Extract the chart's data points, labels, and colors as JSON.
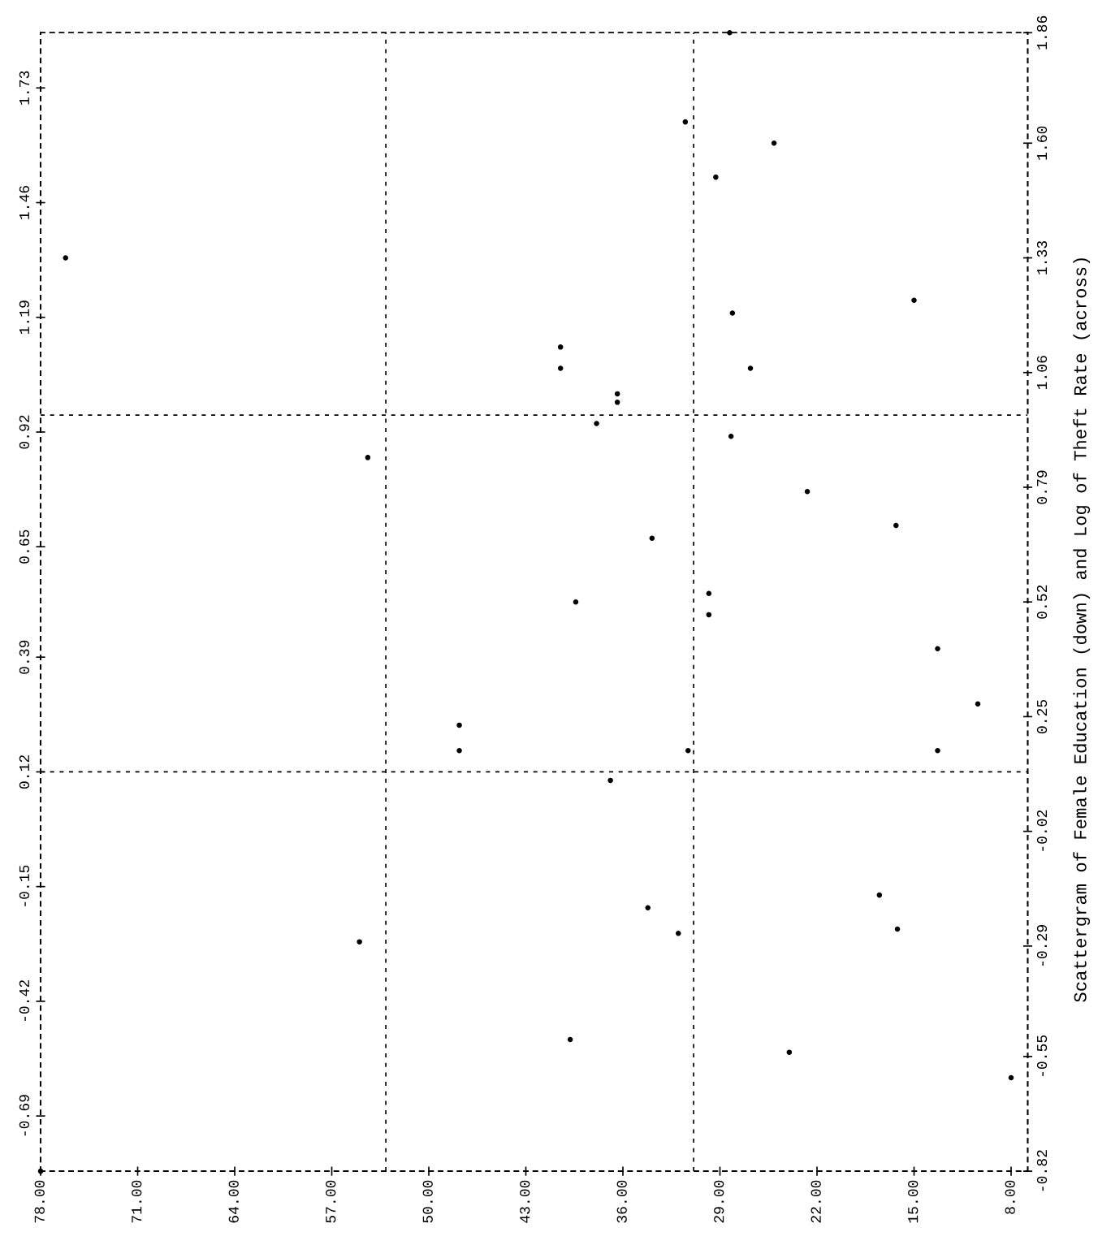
{
  "chart_data": {
    "type": "scatter",
    "title": "Scattergram of Female Education (down) and Log of Theft Rate (across)",
    "marker": "circle",
    "grid": false,
    "xlim": [
      78,
      6.8
    ],
    "xticks": [
      {
        "value": 78,
        "label": "78.00"
      },
      {
        "value": 71,
        "label": "71.00"
      },
      {
        "value": 64,
        "label": "64.00"
      },
      {
        "value": 57,
        "label": "57.00"
      },
      {
        "value": 50,
        "label": "50.00"
      },
      {
        "value": 43,
        "label": "43.00"
      },
      {
        "value": 36,
        "label": "36.00"
      },
      {
        "value": 29,
        "label": "29.00"
      },
      {
        "value": 22,
        "label": "22.00"
      },
      {
        "value": 15,
        "label": "15.00"
      },
      {
        "value": 8,
        "label": "8.00"
      }
    ],
    "ylim": [
      -0.82,
      1.86
    ],
    "yticks": [
      {
        "value": 1.73,
        "label": "1.73"
      },
      {
        "value": 1.46,
        "label": "1.46"
      },
      {
        "value": 1.19,
        "label": "1.19"
      },
      {
        "value": 0.92,
        "label": "0.92"
      },
      {
        "value": 0.65,
        "label": "0.65"
      },
      {
        "value": 0.39,
        "label": "0.39"
      },
      {
        "value": 0.12,
        "label": "0.12"
      },
      {
        "value": -0.15,
        "label": "-0.15"
      },
      {
        "value": -0.42,
        "label": "-0.42"
      },
      {
        "value": -0.69,
        "label": "-0.69"
      }
    ],
    "y2lim": [
      -0.82,
      1.86
    ],
    "y2ticks": [
      {
        "value": 1.86,
        "label": "1.86"
      },
      {
        "value": 1.6,
        "label": "1.60"
      },
      {
        "value": 1.33,
        "label": "1.33"
      },
      {
        "value": 1.06,
        "label": "1.06"
      },
      {
        "value": 0.79,
        "label": "0.79"
      },
      {
        "value": 0.52,
        "label": "0.52"
      },
      {
        "value": 0.25,
        "label": "0.25"
      },
      {
        "value": -0.02,
        "label": "-0.02"
      },
      {
        "value": -0.29,
        "label": "-0.29"
      },
      {
        "value": -0.55,
        "label": "-0.55"
      },
      {
        "value": -0.82,
        "label": "-0.82"
      }
    ],
    "ref_lines": [
      {
        "axis": "x",
        "value": 53.1,
        "color": "#000000",
        "line_style": "dashed"
      },
      {
        "axis": "x",
        "value": 30.9,
        "color": "#000000",
        "line_style": "dashed"
      },
      {
        "axis": "y",
        "value": 0.96,
        "color": "#000000",
        "line_style": "dashed"
      },
      {
        "axis": "y",
        "value": 0.12,
        "color": "#000000",
        "line_style": "dashed"
      }
    ],
    "series": [
      {
        "color": "#000000",
        "x": [
          76.2,
          54.4,
          40.5,
          40.5,
          36.4,
          36.4,
          37.9,
          33.9,
          39.4,
          29.3,
          25.1,
          28.1,
          26.8,
          28.2,
          22.7,
          16.3,
          15.0,
          29.8,
          29.8,
          13.3,
          31.5,
          28.3,
          10.4,
          13.3,
          47.8,
          47.8,
          31.3,
          36.9,
          55.0,
          34.2,
          32.0,
          17.5,
          16.2,
          39.8,
          24.0,
          8.0,
          78.0
        ],
        "values": [
          1.33,
          0.86,
          1.12,
          1.07,
          1.01,
          0.99,
          0.94,
          0.67,
          0.52,
          1.52,
          1.6,
          1.2,
          1.07,
          0.91,
          0.78,
          0.7,
          1.23,
          0.54,
          0.49,
          0.41,
          1.65,
          1.86,
          0.28,
          0.17,
          0.23,
          0.17,
          0.17,
          0.1,
          -0.28,
          -0.2,
          -0.26,
          -0.17,
          -0.25,
          -0.51,
          -0.54,
          -0.6,
          -0.82
        ]
      }
    ]
  }
}
